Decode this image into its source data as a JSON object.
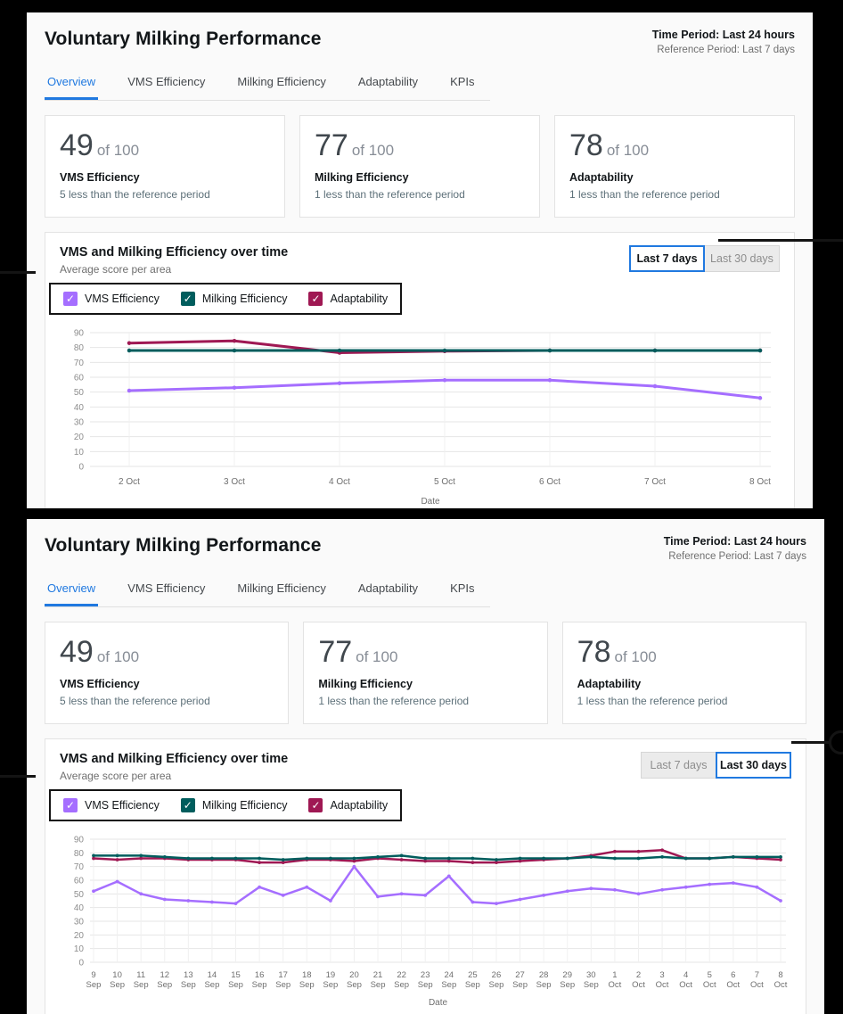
{
  "shared": {
    "header": {
      "title": "Voluntary Milking Performance",
      "time_period": "Time Period: Last 24 hours",
      "reference_period": "Reference Period: Last 7 days"
    },
    "tabs": [
      "Overview",
      "VMS Efficiency",
      "Milking Efficiency",
      "Adaptability",
      "KPIs"
    ],
    "cards": [
      {
        "value": "49",
        "suffix": "of 100",
        "name": "VMS Efficiency",
        "delta": "5 less than the reference period"
      },
      {
        "value": "77",
        "suffix": "of 100",
        "name": "Milking Efficiency",
        "delta": "1 less than the reference period"
      },
      {
        "value": "78",
        "suffix": "of 100",
        "name": "Adaptability",
        "delta": "1 less than the reference period"
      }
    ],
    "legend": [
      {
        "label": "VMS Efficiency",
        "color": "#a56eff"
      },
      {
        "label": "Milking Efficiency",
        "color": "#005d5d"
      },
      {
        "label": "Adaptability",
        "color": "#9f1853"
      }
    ],
    "check_glyph": "✓",
    "toggle_options": [
      "Last 7 days",
      "Last 30 days"
    ],
    "colors": {
      "accent_blue": "#2079e0",
      "annotation_black": "#141414"
    }
  },
  "panels": [
    {
      "selected_range": "Last 7 days"
    },
    {
      "selected_range": "Last 30 days"
    }
  ],
  "chart_data": [
    {
      "type": "line",
      "title": "VMS and Milking Efficiency over time",
      "subtitle": "Average score per area",
      "xlabel": "Date",
      "ylim": [
        0,
        90
      ],
      "ytick_step": 10,
      "grid": true,
      "legend_position": "top-left",
      "two_line_labels": false,
      "categories": [
        "2 Oct",
        "3 Oct",
        "4 Oct",
        "5 Oct",
        "6 Oct",
        "7 Oct",
        "8 Oct"
      ],
      "series": [
        {
          "name": "VMS Efficiency",
          "color": "#a56eff",
          "values": [
            51,
            53,
            56,
            58,
            58,
            54,
            46
          ]
        },
        {
          "name": "Adaptability",
          "color": "#9f1853",
          "values": [
            83,
            84.5,
            76.5,
            77.5,
            78,
            78,
            78
          ]
        },
        {
          "name": "Milking Efficiency",
          "color": "#005d5d",
          "values": [
            78,
            78,
            78,
            78,
            78,
            78,
            78
          ]
        }
      ]
    },
    {
      "type": "line",
      "title": "VMS and Milking Efficiency over time",
      "subtitle": "Average score per area",
      "xlabel": "Date",
      "ylim": [
        0,
        90
      ],
      "ytick_step": 10,
      "grid": true,
      "legend_position": "top-left",
      "two_line_labels": true,
      "categories": [
        "9 Sep",
        "10 Sep",
        "11 Sep",
        "12 Sep",
        "13 Sep",
        "14 Sep",
        "15 Sep",
        "16 Sep",
        "17 Sep",
        "18 Sep",
        "19 Sep",
        "20 Sep",
        "21 Sep",
        "22 Sep",
        "23 Sep",
        "24 Sep",
        "25 Sep",
        "26 Sep",
        "27 Sep",
        "28 Sep",
        "29 Sep",
        "30 Sep",
        "1 Oct",
        "2 Oct",
        "3 Oct",
        "4 Oct",
        "5 Oct",
        "6 Oct",
        "7 Oct",
        "8 Oct"
      ],
      "series": [
        {
          "name": "VMS Efficiency",
          "color": "#a56eff",
          "values": [
            52,
            59,
            50,
            46,
            45,
            44,
            43,
            55,
            49,
            55,
            45,
            70,
            48,
            50,
            49,
            63,
            44,
            43,
            46,
            49,
            52,
            54,
            53,
            50,
            53,
            55,
            57,
            58,
            55,
            45
          ]
        },
        {
          "name": "Adaptability",
          "color": "#9f1853",
          "values": [
            76,
            75,
            76,
            76,
            75,
            75,
            75,
            73,
            73,
            75,
            75,
            74,
            76,
            75,
            74,
            74,
            73,
            73,
            74,
            75,
            76,
            78,
            81,
            81,
            82,
            76,
            76,
            77,
            76,
            75
          ]
        },
        {
          "name": "Milking Efficiency",
          "color": "#005d5d",
          "values": [
            78,
            78,
            78,
            77,
            76,
            76,
            76,
            76,
            75,
            76,
            76,
            76,
            77,
            78,
            76,
            76,
            76,
            75,
            76,
            76,
            76,
            77,
            76,
            76,
            77,
            76,
            76,
            77,
            77,
            77
          ]
        }
      ]
    }
  ]
}
